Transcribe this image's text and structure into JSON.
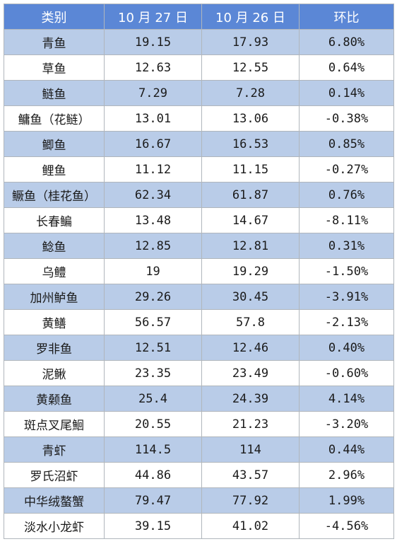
{
  "table": {
    "headers": [
      "类别",
      "10 月 27 日",
      "10 月 26 日",
      "环比"
    ],
    "rows": [
      [
        "青鱼",
        "19.15",
        "17.93",
        "6.80%"
      ],
      [
        "草鱼",
        "12.63",
        "12.55",
        "0.64%"
      ],
      [
        "鲢鱼",
        "7.29",
        "7.28",
        "0.14%"
      ],
      [
        "鳙鱼（花鲢）",
        "13.01",
        "13.06",
        "-0.38%"
      ],
      [
        "鲫鱼",
        "16.67",
        "16.53",
        "0.85%"
      ],
      [
        "鲤鱼",
        "11.12",
        "11.15",
        "-0.27%"
      ],
      [
        "鳜鱼（桂花鱼）",
        "62.34",
        "61.87",
        "0.76%"
      ],
      [
        "长春鳊",
        "13.48",
        "14.67",
        "-8.11%"
      ],
      [
        "鲶鱼",
        "12.85",
        "12.81",
        "0.31%"
      ],
      [
        "乌鳢",
        "19",
        "19.29",
        "-1.50%"
      ],
      [
        "加州鲈鱼",
        "29.26",
        "30.45",
        "-3.91%"
      ],
      [
        "黄鳝",
        "56.57",
        "57.8",
        "-2.13%"
      ],
      [
        "罗非鱼",
        "12.51",
        "12.46",
        "0.40%"
      ],
      [
        "泥鳅",
        "23.35",
        "23.49",
        "-0.60%"
      ],
      [
        "黄颡鱼",
        "25.4",
        "24.39",
        "4.14%"
      ],
      [
        "斑点叉尾鮰",
        "20.55",
        "21.23",
        "-3.20%"
      ],
      [
        "青虾",
        "114.5",
        "114",
        "0.44%"
      ],
      [
        "罗氏沼虾",
        "44.86",
        "43.57",
        "2.96%"
      ],
      [
        "中华绒螯蟹",
        "79.47",
        "77.92",
        "1.99%"
      ],
      [
        "淡水小龙虾",
        "39.15",
        "41.02",
        "-4.56%"
      ]
    ]
  },
  "colors": {
    "header_bg": "#5b87d6",
    "header_text": "#ffffff",
    "stripe_bg": "#b9cce8",
    "plain_bg": "#ffffff",
    "border": "#b0b6bc"
  }
}
